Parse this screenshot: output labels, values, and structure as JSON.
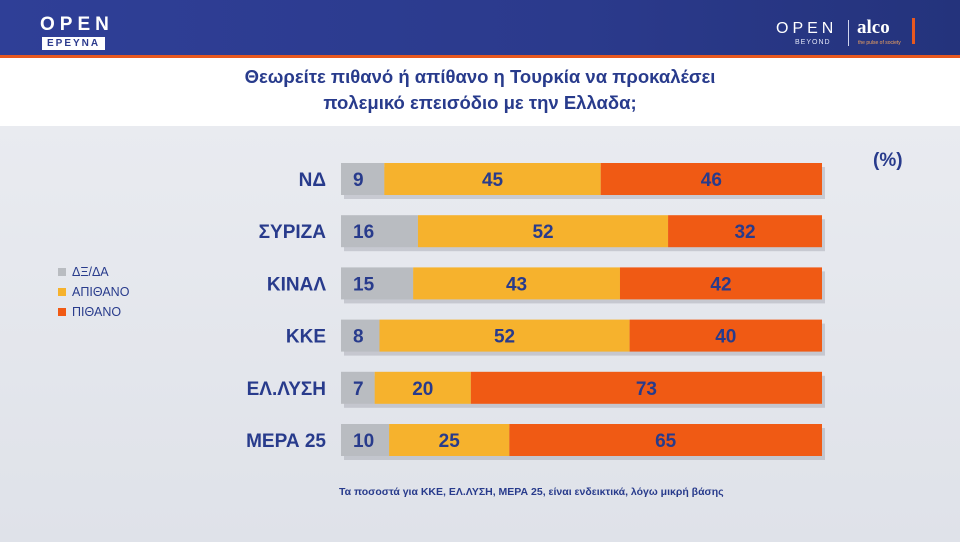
{
  "header": {
    "logo_left": "OPEN",
    "logo_left_sub": "ΕΡΕΥΝΑ",
    "logo_right_open": "OPEN",
    "logo_right_beyond": "BEYOND",
    "logo_right_alco": "alco",
    "logo_right_alco_tag": "the pulse of society"
  },
  "title_line1": "Θεωρείτε πιθανό ή απίθανο η Τουρκία να προκαλέσει",
  "title_line2": "πολεμικό επεισόδιο με την Ελλαδα;",
  "unit_label": "(%)",
  "footnote": "Τα ποσοστά για ΚΚΕ, ΕΛ.ΛΥΣΗ, ΜΕΡΑ 25, είναι ενδεικτικά, λόγω μικρή βάσης",
  "colors": {
    "dk": "#b9bcc1",
    "unlikely": "#f6b22d",
    "likely": "#f05a14",
    "text": "#283b8c"
  },
  "chart_data": {
    "type": "bar",
    "orientation": "horizontal",
    "stacked": true,
    "categories": [
      "ΝΔ",
      "ΣΥΡΙΖΑ",
      "ΚΙΝΑΛ",
      "ΚΚΕ",
      "ΕΛ.ΛΥΣΗ",
      "ΜΕΡΑ 25"
    ],
    "series": [
      {
        "name": "ΔΞ/ΔΑ",
        "values": [
          9,
          16,
          15,
          8,
          7,
          10
        ]
      },
      {
        "name": "ΑΠΙΘΑΝΟ",
        "values": [
          45,
          52,
          43,
          52,
          20,
          25
        ]
      },
      {
        "name": "ΠΙΘΑΝΟ",
        "values": [
          46,
          32,
          42,
          40,
          73,
          65
        ]
      }
    ],
    "xlim": [
      0,
      100
    ],
    "legend_position": "left",
    "grid": false
  }
}
